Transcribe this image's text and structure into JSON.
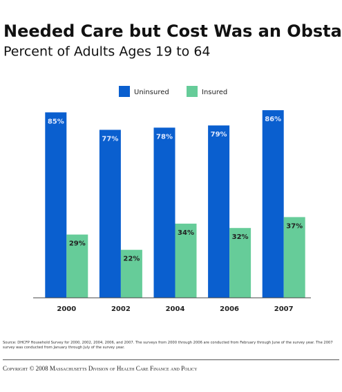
{
  "chart_data": {
    "type": "bar",
    "title": "Needed Care but Cost Was an Obstacle",
    "subtitle": "Percent of Adults Ages 19 to 64",
    "categories": [
      "2000",
      "2002",
      "2004",
      "2006",
      "2007"
    ],
    "series": [
      {
        "name": "Uninsured",
        "color": "#0a5fcf",
        "values": [
          85,
          77,
          78,
          79,
          86
        ],
        "value_labels": [
          "85%",
          "77%",
          "78%",
          "79%",
          "86%"
        ]
      },
      {
        "name": "Insured",
        "color": "#66cc99",
        "values": [
          29,
          22,
          34,
          32,
          37
        ],
        "value_labels": [
          "29%",
          "22%",
          "34%",
          "32%",
          "37%"
        ]
      }
    ],
    "ylim": [
      0,
      100
    ],
    "source": "Source: DHCFP Household Survey for 2000, 2002, 2004, 2006, and 2007. The surveys from 2000 through 2006 are conducted from February through June of the survey year. The 2007 survey was conducted from January through July of the survey year.",
    "copyright": "Copyright © 2008 Massachusetts Division of Health Care Finance and Policy"
  }
}
